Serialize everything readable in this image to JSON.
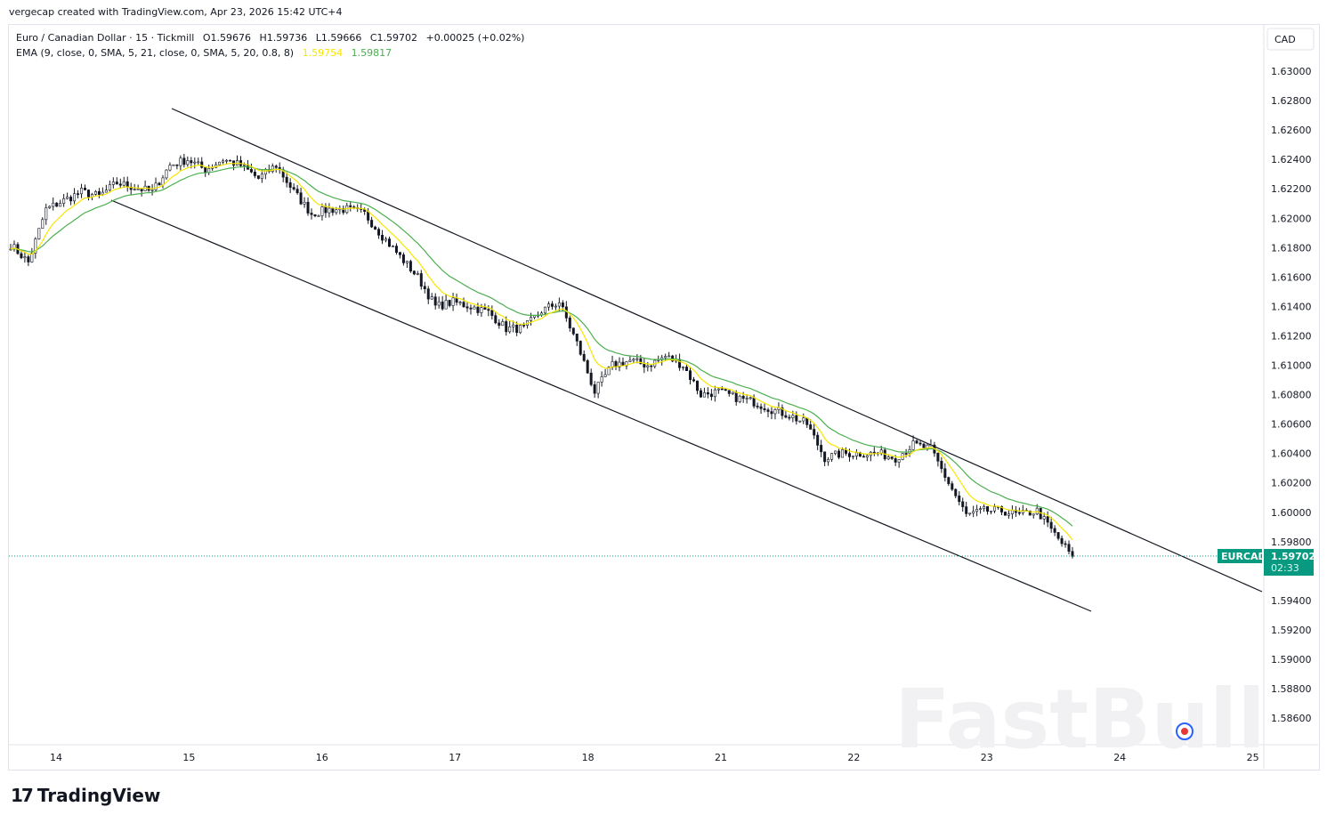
{
  "credit": "vergecap created with TradingView.com, Apr 23, 2026 15:42 UTC+4",
  "legend": {
    "symbol": "Euro / Canadian Dollar · 15 · Tickmill",
    "open": "O1.59676",
    "high": "H1.59736",
    "low": "L1.59666",
    "close": "C1.59702",
    "change": "+0.00025 (+0.02%)",
    "indicator": "EMA (9, close, 0, SMA, 5, 21, close, 0, SMA, 5, 20, 0.8, 8)",
    "ema1": "1.59754",
    "ema2": "1.59817"
  },
  "currency": "CAD",
  "price_label": {
    "symbol": "EURCAD",
    "price": "1.59702",
    "countdown": "02:33"
  },
  "colors": {
    "accent": "#089981",
    "ema_fast": "#f7e600",
    "ema_slow": "#4caf50",
    "candle": "#131722"
  },
  "watermark": "FastBull",
  "brand": "TradingView",
  "chart_data": {
    "type": "candlestick",
    "ylim": [
      1.585,
      1.631
    ],
    "y_ticks": [
      "1.63000",
      "1.62800",
      "1.62600",
      "1.62400",
      "1.62200",
      "1.62000",
      "1.61800",
      "1.61600",
      "1.61400",
      "1.61200",
      "1.61000",
      "1.60800",
      "1.60600",
      "1.60400",
      "1.60200",
      "1.60000",
      "1.59800",
      "1.59400",
      "1.59200",
      "1.59000",
      "1.58800",
      "1.58600"
    ],
    "x_ticks": [
      "14",
      "15",
      "16",
      "17",
      "18",
      "21",
      "22",
      "23",
      "24",
      "25"
    ],
    "closes_sampled": [
      1.6182,
      1.617,
      1.6206,
      1.6212,
      1.6218,
      1.6215,
      1.6224,
      1.6221,
      1.6218,
      1.6236,
      1.624,
      1.6233,
      1.624,
      1.6236,
      1.6227,
      1.6236,
      1.6218,
      1.6203,
      1.6206,
      1.6206,
      1.6203,
      1.6188,
      1.6174,
      1.616,
      1.614,
      1.6143,
      1.614,
      1.6136,
      1.6125,
      1.6125,
      1.6137,
      1.6143,
      1.6115,
      1.6082,
      1.61,
      1.6103,
      1.61,
      1.6106,
      1.61,
      1.608,
      1.6082,
      1.6078,
      1.6075,
      1.607,
      1.6066,
      1.606,
      1.6037,
      1.604,
      1.604,
      1.604,
      1.6037,
      1.6046,
      1.6043,
      1.602,
      1.5998,
      1.6001,
      1.6001,
      1.5998,
      1.6001,
      1.5985,
      1.597
    ],
    "last_price": 1.59702,
    "series": [
      {
        "name": "EMA 9",
        "last": 1.59754
      },
      {
        "name": "EMA 21",
        "last": 1.59817
      }
    ]
  }
}
